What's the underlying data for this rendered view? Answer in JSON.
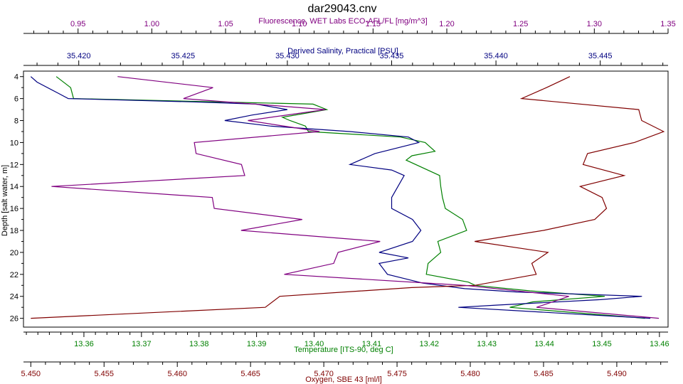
{
  "chart_data": {
    "type": "line",
    "title": "dar29043.cnv",
    "y_axis": {
      "label": "Depth [salt water, m]",
      "range": [
        3.5,
        26.8
      ],
      "ticks": [
        4,
        6,
        8,
        10,
        12,
        14,
        16,
        18,
        20,
        22,
        24,
        26
      ],
      "tick_labels": [
        "4",
        "6",
        "8",
        "10",
        "12",
        "14",
        "16",
        "18",
        "20",
        "22",
        "24",
        "26"
      ],
      "inverted": true
    },
    "x_axes": [
      {
        "id": "fluorescence",
        "label": "Fluorescence, WET Labs ECO-AFL/FL [mg/m^3]",
        "position": "top-outer",
        "color": "#800080",
        "range": [
          0.913,
          1.35
        ],
        "ticks": [
          0.95,
          1.0,
          1.05,
          1.1,
          1.15,
          1.2,
          1.25,
          1.3,
          1.35
        ],
        "tick_labels": [
          "0.95",
          "1.00",
          "1.05",
          "1.10",
          "1.15",
          "1.20",
          "1.25",
          "1.30",
          "1.35"
        ]
      },
      {
        "id": "salinity",
        "label": "Derived Salinity, Practical [PSU]",
        "position": "top-inner",
        "color": "#000080",
        "range": [
          35.41735,
          35.44825
        ],
        "ticks": [
          35.42,
          35.425,
          35.43,
          35.435,
          35.44,
          35.445
        ],
        "tick_labels": [
          "35.420",
          "35.425",
          "35.430",
          "35.435",
          "35.440",
          "35.445"
        ]
      },
      {
        "id": "temperature",
        "label": "Temperature [ITS-90, deg C]",
        "position": "bottom-inner",
        "color": "#008000",
        "range": [
          13.3495,
          13.4615
        ],
        "ticks": [
          13.36,
          13.37,
          13.38,
          13.39,
          13.4,
          13.41,
          13.42,
          13.43,
          13.44,
          13.45,
          13.46
        ],
        "tick_labels": [
          "13.36",
          "13.37",
          "13.38",
          "13.39",
          "13.40",
          "13.41",
          "13.42",
          "13.43",
          "13.44",
          "13.45",
          "13.46"
        ]
      },
      {
        "id": "oxygen",
        "label": "Oxygen, SBE 43 [ml/l]",
        "position": "bottom-outer",
        "color": "#800000",
        "range": [
          5.4495,
          5.4935
        ],
        "ticks": [
          5.45,
          5.455,
          5.46,
          5.465,
          5.47,
          5.475,
          5.48,
          5.485,
          5.49
        ],
        "tick_labels": [
          "5.450",
          "5.455",
          "5.460",
          "5.465",
          "5.470",
          "5.475",
          "5.480",
          "5.485",
          "5.490"
        ]
      }
    ],
    "series": [
      {
        "axis": "temperature",
        "color": "#008000",
        "points": [
          [
            13.3552,
            4.0
          ],
          [
            13.3577,
            5.0
          ],
          [
            13.3582,
            6.0
          ],
          [
            13.3998,
            6.5
          ],
          [
            13.4022,
            7.0
          ],
          [
            13.3945,
            7.7
          ],
          [
            13.3958,
            8.0
          ],
          [
            13.3985,
            8.5
          ],
          [
            13.399,
            9.0
          ],
          [
            13.415,
            9.5
          ],
          [
            13.4193,
            10.0
          ],
          [
            13.421,
            10.8
          ],
          [
            13.417,
            11.2
          ],
          [
            13.416,
            11.6
          ],
          [
            13.4218,
            13.0
          ],
          [
            13.422,
            14.0
          ],
          [
            13.4223,
            15.0
          ],
          [
            13.4228,
            16.0
          ],
          [
            13.4258,
            17.0
          ],
          [
            13.4265,
            18.0
          ],
          [
            13.4215,
            19.0
          ],
          [
            13.422,
            20.0
          ],
          [
            13.4198,
            21.0
          ],
          [
            13.4195,
            22.0
          ],
          [
            13.4268,
            22.7
          ],
          [
            13.428,
            23.0
          ],
          [
            13.4375,
            23.5
          ],
          [
            13.4505,
            24.0
          ],
          [
            13.438,
            24.5
          ],
          [
            13.434,
            25.0
          ],
          [
            13.4575,
            26.0
          ]
        ]
      },
      {
        "axis": "salinity",
        "color": "#000080",
        "points": [
          [
            35.4177,
            4.0
          ],
          [
            35.418,
            4.5
          ],
          [
            35.419,
            5.5
          ],
          [
            35.4195,
            6.0
          ],
          [
            35.4255,
            6.3
          ],
          [
            35.4285,
            6.5
          ],
          [
            35.43,
            7.0
          ],
          [
            35.4283,
            7.5
          ],
          [
            35.427,
            8.0
          ],
          [
            35.4292,
            8.5
          ],
          [
            35.433,
            9.0
          ],
          [
            35.4358,
            9.5
          ],
          [
            35.4363,
            10.0
          ],
          [
            35.4342,
            11.0
          ],
          [
            35.433,
            12.0
          ],
          [
            35.435,
            12.5
          ],
          [
            35.4356,
            13.0
          ],
          [
            35.435,
            15.0
          ],
          [
            35.435,
            16.0
          ],
          [
            35.436,
            17.0
          ],
          [
            35.4364,
            18.0
          ],
          [
            35.436,
            19.0
          ],
          [
            35.4344,
            20.0
          ],
          [
            35.4358,
            20.5
          ],
          [
            35.4344,
            21.0
          ],
          [
            35.4348,
            22.0
          ],
          [
            35.4365,
            22.8
          ],
          [
            35.4385,
            23.3
          ],
          [
            35.441,
            23.6
          ],
          [
            35.447,
            24.0
          ],
          [
            35.445,
            24.3
          ],
          [
            35.44,
            24.8
          ],
          [
            35.4382,
            25.0
          ],
          [
            35.4474,
            26.0
          ]
        ]
      },
      {
        "axis": "oxygen",
        "color": "#800000",
        "points": [
          [
            5.4868,
            4.0
          ],
          [
            5.4852,
            5.0
          ],
          [
            5.4835,
            6.0
          ],
          [
            5.4915,
            7.0
          ],
          [
            5.4917,
            8.0
          ],
          [
            5.4932,
            9.0
          ],
          [
            5.4912,
            10.0
          ],
          [
            5.488,
            11.0
          ],
          [
            5.4877,
            12.0
          ],
          [
            5.4905,
            13.0
          ],
          [
            5.4875,
            14.0
          ],
          [
            5.489,
            15.0
          ],
          [
            5.4893,
            16.0
          ],
          [
            5.4885,
            17.0
          ],
          [
            5.485,
            18.0
          ],
          [
            5.4803,
            19.0
          ],
          [
            5.4853,
            20.0
          ],
          [
            5.4842,
            21.0
          ],
          [
            5.4845,
            22.0
          ],
          [
            5.4803,
            23.0
          ],
          [
            5.476,
            23.2
          ],
          [
            5.467,
            24.0
          ],
          [
            5.466,
            25.0
          ],
          [
            5.45,
            26.0
          ]
        ]
      },
      {
        "axis": "fluorescence",
        "color": "#800080",
        "points": [
          [
            0.9768,
            4.0
          ],
          [
            1.0415,
            5.0
          ],
          [
            1.0215,
            6.0
          ],
          [
            1.1177,
            7.0
          ],
          [
            1.0652,
            8.0
          ],
          [
            1.1137,
            9.0
          ],
          [
            1.0288,
            10.0
          ],
          [
            1.03,
            11.0
          ],
          [
            1.0608,
            12.0
          ],
          [
            1.063,
            13.0
          ],
          [
            0.932,
            14.0
          ],
          [
            1.041,
            15.0
          ],
          [
            1.0423,
            16.0
          ],
          [
            1.102,
            17.0
          ],
          [
            1.0605,
            18.0
          ],
          [
            1.1548,
            19.0
          ],
          [
            1.1263,
            20.0
          ],
          [
            1.1233,
            21.0
          ],
          [
            1.0898,
            22.0
          ],
          [
            1.2123,
            23.0
          ],
          [
            1.2828,
            24.0
          ],
          [
            1.2608,
            25.0
          ],
          [
            1.3438,
            26.0
          ]
        ]
      }
    ],
    "grid": false,
    "legend": "none"
  }
}
